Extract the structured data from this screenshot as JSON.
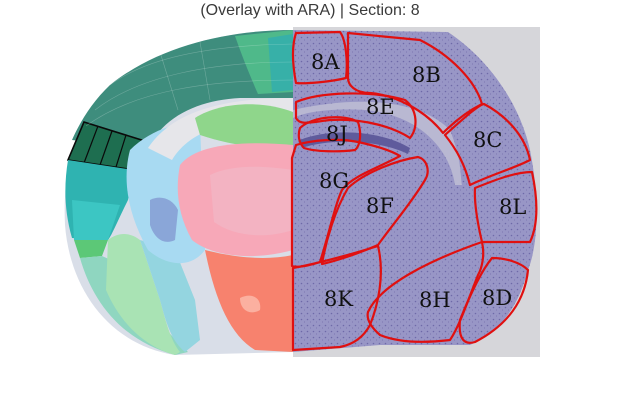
{
  "title": "(Overlay with ARA) | Section: 8",
  "colors": {
    "outline": "#e01010",
    "tissue": "#8e8cc0",
    "cortex_dark": "#3d8c7c",
    "cortex_teal": "#2fb3b1",
    "highlight": "#1d6b4f"
  },
  "regions": [
    {
      "id": "8A",
      "label": "8A"
    },
    {
      "id": "8B",
      "label": "8B"
    },
    {
      "id": "8E",
      "label": "8E"
    },
    {
      "id": "8J",
      "label": "8J"
    },
    {
      "id": "8C",
      "label": "8C"
    },
    {
      "id": "8G",
      "label": "8G"
    },
    {
      "id": "8F",
      "label": "8F"
    },
    {
      "id": "8L",
      "label": "8L"
    },
    {
      "id": "8K",
      "label": "8K"
    },
    {
      "id": "8H",
      "label": "8H"
    },
    {
      "id": "8D",
      "label": "8D"
    }
  ]
}
